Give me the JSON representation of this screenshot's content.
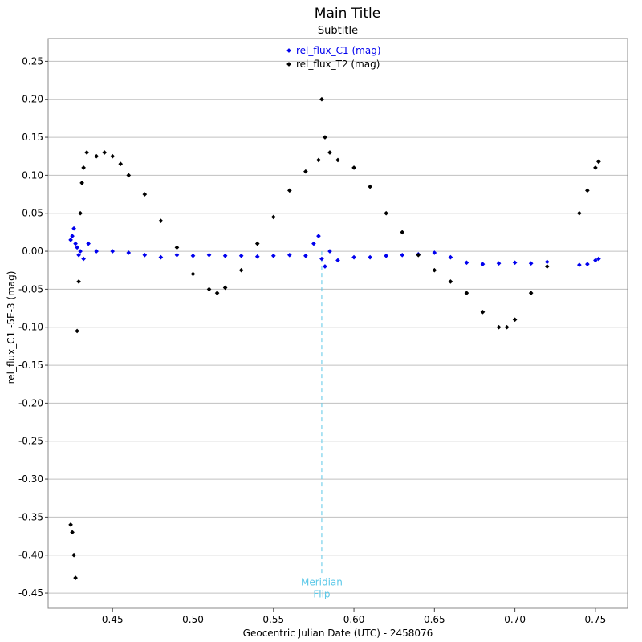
{
  "chart_data": {
    "type": "scatter",
    "title": "Main Title",
    "subtitle": "Subtitle",
    "xlabel": "Geocentric Julian Date (UTC) - 2458076",
    "ylabel": "rel_flux_C1 -5E-3 (mag)",
    "xlim": [
      0.41,
      0.77
    ],
    "ylim": [
      -0.47,
      0.28
    ],
    "xticks": [
      "0.45",
      "0.50",
      "0.55",
      "0.60",
      "0.65",
      "0.70",
      "0.75"
    ],
    "yticks": [
      "0.25",
      "0.20",
      "0.15",
      "0.10",
      "0.05",
      "0.00",
      "-0.05",
      "-0.10",
      "-0.15",
      "-0.20",
      "-0.25",
      "-0.30",
      "-0.35",
      "-0.40",
      "-0.45"
    ],
    "grid": "horizontal",
    "legend": "top-center",
    "annotations": [
      {
        "type": "vline",
        "x": 0.58,
        "label_lines": [
          "Meridian",
          "Flip"
        ],
        "color": "#5bc8e8"
      }
    ],
    "series": [
      {
        "name": "rel_flux_C1 (mag)",
        "color": "#0000ee",
        "points": [
          [
            0.424,
            0.015
          ],
          [
            0.425,
            0.02
          ],
          [
            0.426,
            0.03
          ],
          [
            0.427,
            0.01
          ],
          [
            0.428,
            0.005
          ],
          [
            0.429,
            -0.005
          ],
          [
            0.43,
            0.0
          ],
          [
            0.432,
            -0.01
          ],
          [
            0.435,
            0.01
          ],
          [
            0.44,
            0.0
          ],
          [
            0.45,
            0.0
          ],
          [
            0.46,
            -0.002
          ],
          [
            0.47,
            -0.005
          ],
          [
            0.48,
            -0.008
          ],
          [
            0.49,
            -0.005
          ],
          [
            0.5,
            -0.006
          ],
          [
            0.51,
            -0.005
          ],
          [
            0.52,
            -0.006
          ],
          [
            0.53,
            -0.006
          ],
          [
            0.54,
            -0.007
          ],
          [
            0.55,
            -0.006
          ],
          [
            0.56,
            -0.005
          ],
          [
            0.57,
            -0.006
          ],
          [
            0.575,
            0.01
          ],
          [
            0.578,
            0.02
          ],
          [
            0.58,
            -0.01
          ],
          [
            0.582,
            -0.02
          ],
          [
            0.585,
            0.0
          ],
          [
            0.59,
            -0.012
          ],
          [
            0.6,
            -0.008
          ],
          [
            0.61,
            -0.008
          ],
          [
            0.62,
            -0.006
          ],
          [
            0.63,
            -0.005
          ],
          [
            0.64,
            -0.004
          ],
          [
            0.65,
            -0.002
          ],
          [
            0.66,
            -0.008
          ],
          [
            0.67,
            -0.015
          ],
          [
            0.68,
            -0.017
          ],
          [
            0.69,
            -0.016
          ],
          [
            0.7,
            -0.015
          ],
          [
            0.71,
            -0.016
          ],
          [
            0.72,
            -0.014
          ],
          [
            0.74,
            -0.018
          ],
          [
            0.745,
            -0.017
          ],
          [
            0.75,
            -0.012
          ],
          [
            0.752,
            -0.01
          ]
        ]
      },
      {
        "name": "rel_flux_T2 (mag)",
        "color": "#000000",
        "points": [
          [
            0.424,
            -0.36
          ],
          [
            0.425,
            -0.37
          ],
          [
            0.426,
            -0.4
          ],
          [
            0.427,
            -0.43
          ],
          [
            0.428,
            -0.105
          ],
          [
            0.429,
            -0.04
          ],
          [
            0.43,
            0.05
          ],
          [
            0.431,
            0.09
          ],
          [
            0.432,
            0.11
          ],
          [
            0.434,
            0.13
          ],
          [
            0.44,
            0.125
          ],
          [
            0.445,
            0.13
          ],
          [
            0.45,
            0.125
          ],
          [
            0.455,
            0.115
          ],
          [
            0.46,
            0.1
          ],
          [
            0.47,
            0.075
          ],
          [
            0.48,
            0.04
          ],
          [
            0.49,
            0.005
          ],
          [
            0.5,
            -0.03
          ],
          [
            0.51,
            -0.05
          ],
          [
            0.515,
            -0.055
          ],
          [
            0.52,
            -0.048
          ],
          [
            0.53,
            -0.025
          ],
          [
            0.54,
            0.01
          ],
          [
            0.55,
            0.045
          ],
          [
            0.56,
            0.08
          ],
          [
            0.57,
            0.105
          ],
          [
            0.578,
            0.12
          ],
          [
            0.58,
            0.2
          ],
          [
            0.582,
            0.15
          ],
          [
            0.585,
            0.13
          ],
          [
            0.59,
            0.12
          ],
          [
            0.6,
            0.11
          ],
          [
            0.61,
            0.085
          ],
          [
            0.62,
            0.05
          ],
          [
            0.63,
            0.025
          ],
          [
            0.64,
            -0.005
          ],
          [
            0.65,
            -0.025
          ],
          [
            0.66,
            -0.04
          ],
          [
            0.67,
            -0.055
          ],
          [
            0.68,
            -0.08
          ],
          [
            0.69,
            -0.1
          ],
          [
            0.695,
            -0.1
          ],
          [
            0.7,
            -0.09
          ],
          [
            0.71,
            -0.055
          ],
          [
            0.72,
            -0.02
          ],
          [
            0.74,
            0.05
          ],
          [
            0.745,
            0.08
          ],
          [
            0.75,
            0.11
          ],
          [
            0.752,
            0.118
          ]
        ]
      }
    ]
  }
}
